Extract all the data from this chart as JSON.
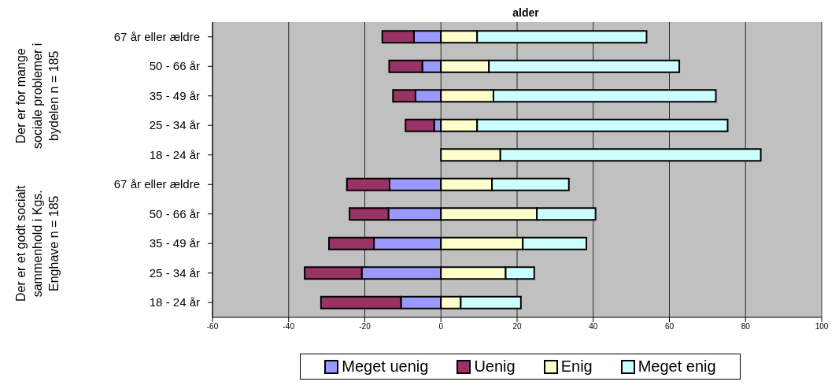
{
  "chart_data": {
    "type": "bar",
    "orientation": "horizontal",
    "stacked": true,
    "title": "alder",
    "categories": [
      "67 år eller ældre",
      "50 - 66 år",
      "35 - 49 år",
      "25 - 34 år",
      "18 - 24 år",
      "67 år eller ældre",
      "50 - 66 år",
      "35 - 49 år",
      "25 - 34 år",
      "18 - 24 år"
    ],
    "series": [
      {
        "name": "Meget uenig",
        "color": "#9999ff",
        "values": [
          -7.1,
          -4.9,
          -6.7,
          -1.8,
          0,
          -13.5,
          -13.8,
          -17.6,
          -20.8,
          -10.5
        ]
      },
      {
        "name": "Uenig",
        "color": "#993366",
        "values": [
          -8.3,
          -8.7,
          -5.9,
          -7.5,
          0,
          -11.2,
          -10.2,
          -11.8,
          -15.0,
          -21.0
        ]
      },
      {
        "name": "Enig",
        "color": "#ffffcc",
        "values": [
          9.5,
          12.6,
          13.8,
          9.5,
          15.6,
          13.4,
          25.2,
          21.5,
          17.0,
          5.2
        ]
      },
      {
        "name": "Meget enig",
        "color": "#ccffff",
        "values": [
          44.5,
          50.0,
          58.4,
          65.8,
          68.4,
          20.2,
          15.4,
          16.7,
          7.5,
          15.8
        ]
      }
    ],
    "xlim": [
      -60,
      100
    ],
    "xticks": [
      -60,
      -40,
      -20,
      0,
      20,
      40,
      60,
      80,
      100
    ],
    "annotations": [
      "Der er for mange sociale problemer i bydelen n = 185",
      "Der er et godt socialt sammenhold i Kgs. Enghave n = 185"
    ],
    "grid": "x",
    "legend": "bottom"
  }
}
